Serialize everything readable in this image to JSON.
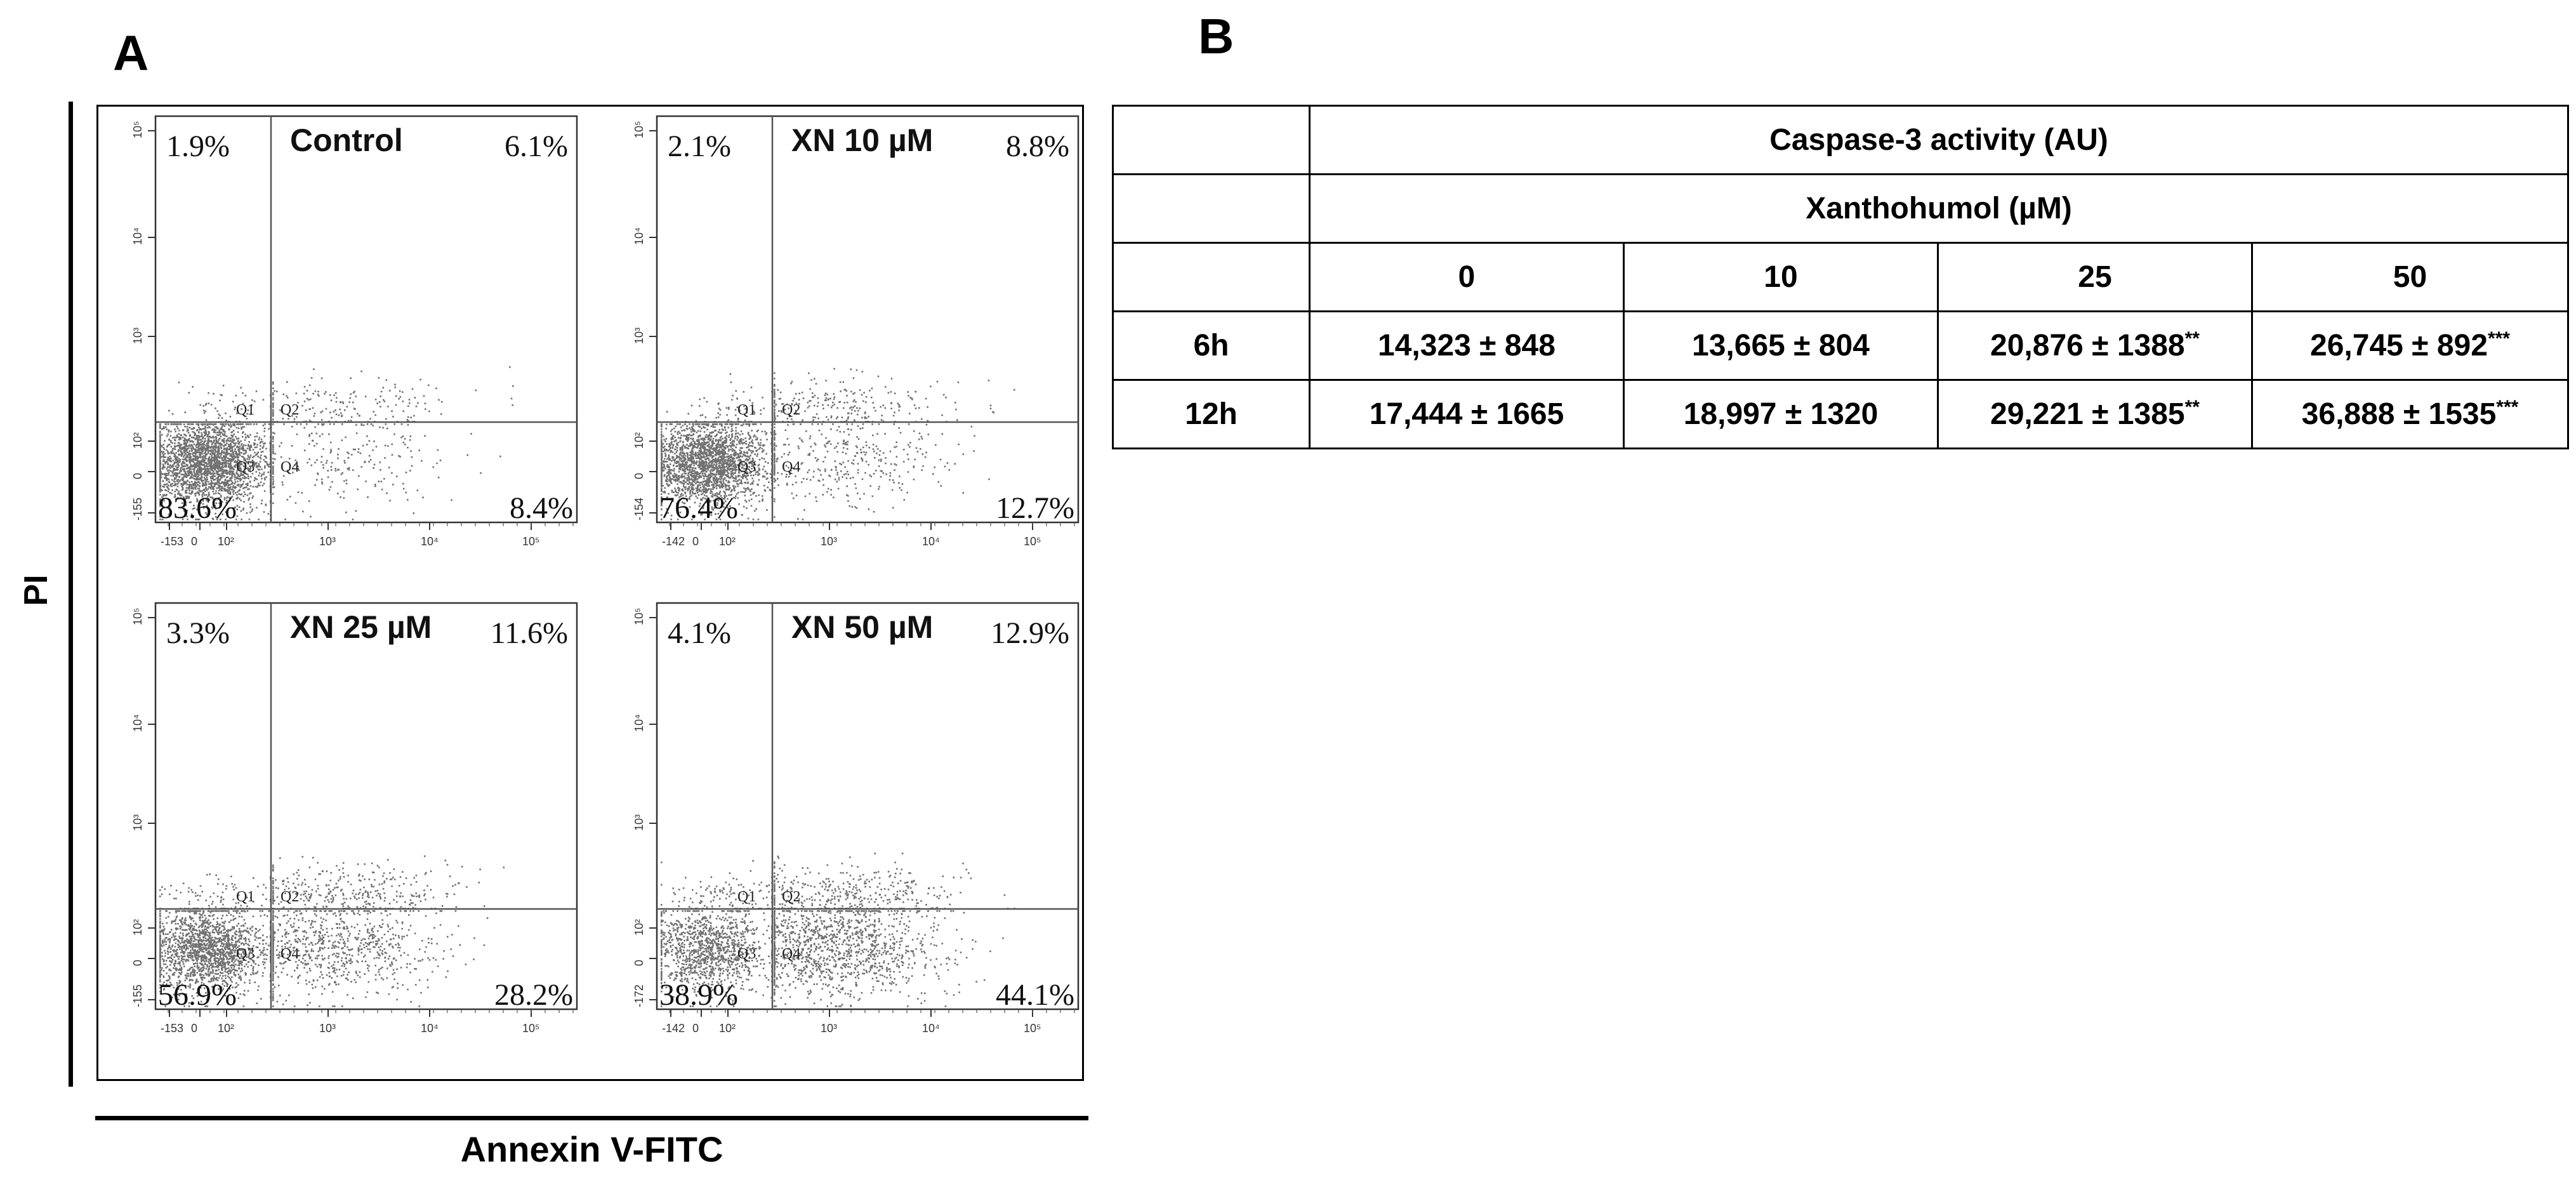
{
  "panel_a_label": "A",
  "panel_b_label": "B",
  "chart_data": [
    {
      "type": "scatter",
      "description_type": "flow-cytometry-quadrant-grid",
      "ylabel": "PI",
      "xlabel": "Annexin V-FITC",
      "gate_labels": [
        "Q1",
        "Q2",
        "Q3",
        "Q4"
      ],
      "x_ticks": [
        "-153",
        "0",
        "10²",
        "10³",
        "10⁴",
        "10⁵"
      ],
      "y_ticks": [
        "10⁵",
        "10⁴",
        "10³",
        "10²",
        "0",
        "-155"
      ],
      "panels": [
        {
          "title": "Control",
          "x_min_label": "-153",
          "y_min_label": "-155",
          "quadrants": {
            "Q1": "1.9%",
            "Q2": "6.1%",
            "Q3": "83.6%",
            "Q4": "8.4%"
          },
          "values": {
            "Q1": 1.9,
            "Q2": 6.1,
            "Q3": 83.6,
            "Q4": 8.4
          }
        },
        {
          "title": "XN 10 µM",
          "x_min_label": "-142",
          "y_min_label": "-154",
          "quadrants": {
            "Q1": "2.1%",
            "Q2": "8.8%",
            "Q3": "76.4%",
            "Q4": "12.7%"
          },
          "values": {
            "Q1": 2.1,
            "Q2": 8.8,
            "Q3": 76.4,
            "Q4": 12.7
          }
        },
        {
          "title": "XN 25 µM",
          "x_min_label": "-153",
          "y_min_label": "-155",
          "quadrants": {
            "Q1": "3.3%",
            "Q2": "11.6%",
            "Q3": "56.9%",
            "Q4": "28.2%"
          },
          "values": {
            "Q1": 3.3,
            "Q2": 11.6,
            "Q3": 56.9,
            "Q4": 28.2
          }
        },
        {
          "title": "XN 50 µM",
          "x_min_label": "-142",
          "y_min_label": "-172",
          "quadrants": {
            "Q1": "4.1%",
            "Q2": "12.9%",
            "Q3": "38.9%",
            "Q4": "44.1%"
          },
          "values": {
            "Q1": 4.1,
            "Q2": 12.9,
            "Q3": 38.9,
            "Q4": 44.1
          }
        }
      ]
    },
    {
      "type": "table",
      "title": "Caspase-3 activity (AU)",
      "column_group": "Xanthohumol (µM)",
      "columns": [
        "0",
        "10",
        "25",
        "50"
      ],
      "rows": [
        {
          "label": "6h",
          "cells": [
            {
              "text": "14,323 ± 848",
              "sig": ""
            },
            {
              "text": "13,665 ± 804",
              "sig": ""
            },
            {
              "text": "20,876 ± 1388",
              "sig": "**"
            },
            {
              "text": "26,745 ± 892",
              "sig": "***"
            }
          ]
        },
        {
          "label": "12h",
          "cells": [
            {
              "text": "17,444 ± 1665",
              "sig": ""
            },
            {
              "text": "18,997 ± 1320",
              "sig": ""
            },
            {
              "text": "29,221 ± 1385",
              "sig": "**"
            },
            {
              "text": "36,888 ± 1535",
              "sig": "***"
            }
          ]
        }
      ]
    }
  ]
}
